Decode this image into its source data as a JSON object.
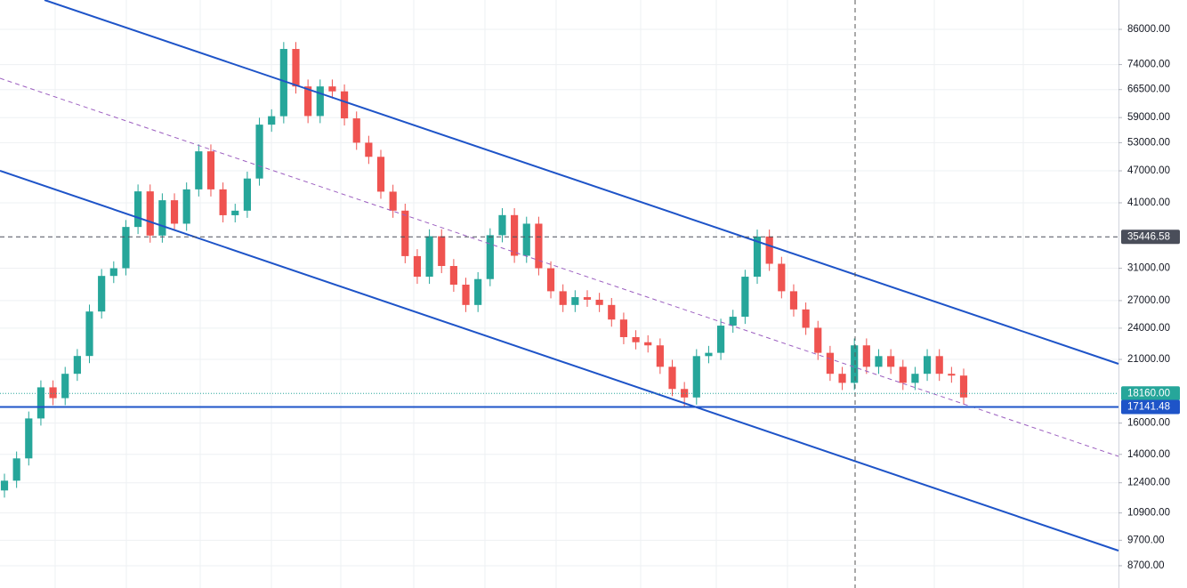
{
  "chart_data": {
    "type": "candlestick",
    "log_scale": true,
    "grid": true,
    "up_color": "#26a69a",
    "down_color": "#ef5350",
    "ylim": [
      7910,
      97500
    ],
    "yticks": [
      {
        "value": 86000,
        "label": "86000.00"
      },
      {
        "value": 74000,
        "label": "74000.00"
      },
      {
        "value": 66500,
        "label": "66500.00"
      },
      {
        "value": 59000,
        "label": "59000.00"
      },
      {
        "value": 53000,
        "label": "53000.00"
      },
      {
        "value": 47000,
        "label": "47000.00"
      },
      {
        "value": 41000,
        "label": "41000.00"
      },
      {
        "value": 31000,
        "label": "31000.00"
      },
      {
        "value": 27000,
        "label": "27000.00"
      },
      {
        "value": 24000,
        "label": "24000.00"
      },
      {
        "value": 21000,
        "label": "21000.00"
      },
      {
        "value": 16000,
        "label": "16000.00"
      },
      {
        "value": 14000,
        "label": "14000.00"
      },
      {
        "value": 12400,
        "label": "12400.00"
      },
      {
        "value": 10900,
        "label": "10900.00"
      },
      {
        "value": 9700,
        "label": "9700.00"
      },
      {
        "value": 8700,
        "label": "8700.00"
      }
    ],
    "price_lines": [
      {
        "value": 35446.58,
        "label": "35446.58",
        "color": "#4a4e5a",
        "style": "dashed"
      },
      {
        "value": 18160,
        "label": "18160.00",
        "color": "#26a69a",
        "style": "dotted"
      },
      {
        "value": 17141.48,
        "label": "17141.48",
        "color": "#1e54c8",
        "style": "solid"
      }
    ],
    "open": [
      12000,
      12510,
      13760,
      16320,
      18640,
      17800,
      19750,
      21310,
      25770,
      30000,
      31000,
      36980,
      43050,
      35650,
      41450,
      37500,
      43420,
      51080,
      43420,
      38880,
      39640,
      45480,
      57250,
      59350,
      79100,
      67400,
      59400,
      67400,
      66000,
      58800,
      53000,
      49900,
      43000,
      39650,
      32650,
      29900,
      35540,
      31300,
      28900,
      26500,
      29600,
      35700,
      38900,
      32700,
      37500,
      31000,
      28100,
      26500,
      27400,
      27100,
      26500,
      24900,
      23100,
      22600,
      22300,
      20350,
      18510,
      17850,
      21300,
      21600,
      24260,
      25200,
      29900,
      35500,
      31600,
      28100,
      26000,
      24040,
      21600,
      19750,
      19000,
      22300,
      20350,
      21300,
      20350,
      19000,
      19750,
      21300,
      19750,
      19600
    ],
    "high": [
      12890,
      14170,
      16810,
      19200,
      19200,
      20340,
      21950,
      26540,
      30900,
      31930,
      38090,
      44340,
      44340,
      42690,
      42690,
      44720,
      52610,
      52610,
      44720,
      40830,
      46840,
      58970,
      61130,
      81470,
      81470,
      69420,
      69420,
      69420,
      67980,
      60560,
      54590,
      51400,
      44290,
      40840,
      33630,
      36610,
      36610,
      32240,
      29770,
      30490,
      36770,
      40070,
      40070,
      38630,
      38630,
      31930,
      28940,
      28220,
      28220,
      27910,
      27300,
      25650,
      23790,
      23280,
      22970,
      20960,
      19070,
      21940,
      22250,
      24990,
      25960,
      30800,
      36570,
      36570,
      32550,
      28940,
      26780,
      24760,
      22250,
      20340,
      22970,
      22970,
      21940,
      21940,
      20960,
      20340,
      21940,
      21940,
      20340,
      20190
    ],
    "low": [
      11640,
      12130,
      13350,
      15830,
      17270,
      17270,
      19160,
      20670,
      25000,
      29100,
      30070,
      35870,
      34580,
      34580,
      36380,
      36380,
      42120,
      42120,
      37710,
      37710,
      38450,
      44120,
      55530,
      57570,
      65380,
      57620,
      57620,
      64020,
      57040,
      51410,
      48400,
      41710,
      38460,
      31670,
      29000,
      29000,
      30360,
      28030,
      25710,
      25710,
      28710,
      34630,
      31720,
      31720,
      30070,
      27260,
      25710,
      25710,
      26290,
      25710,
      24150,
      22410,
      21920,
      21630,
      19740,
      17950,
      17150,
      17310,
      20660,
      20950,
      23530,
      24440,
      29000,
      30650,
      27260,
      25220,
      23320,
      20950,
      19160,
      18430,
      18430,
      19740,
      19740,
      19740,
      18430,
      18430,
      19160,
      19160,
      19010,
      17310
    ],
    "close": [
      12510,
      13760,
      16320,
      18640,
      17800,
      19750,
      21310,
      25770,
      30000,
      31000,
      36980,
      43050,
      35650,
      41450,
      37500,
      43420,
      51080,
      43420,
      38880,
      39640,
      45480,
      57250,
      59350,
      79100,
      67400,
      59400,
      67400,
      66000,
      58800,
      53000,
      49900,
      43000,
      39650,
      32650,
      29900,
      35540,
      31300,
      28900,
      26500,
      29600,
      35700,
      38900,
      32700,
      37500,
      31000,
      28100,
      26500,
      27400,
      27100,
      26500,
      24900,
      23100,
      22600,
      22300,
      20350,
      18510,
      17850,
      21300,
      21600,
      24260,
      25200,
      29900,
      35500,
      31600,
      28100,
      26000,
      24040,
      21600,
      19750,
      19000,
      22300,
      20350,
      21300,
      20350,
      19000,
      19750,
      21300,
      19750,
      19600,
      17850
    ]
  }
}
